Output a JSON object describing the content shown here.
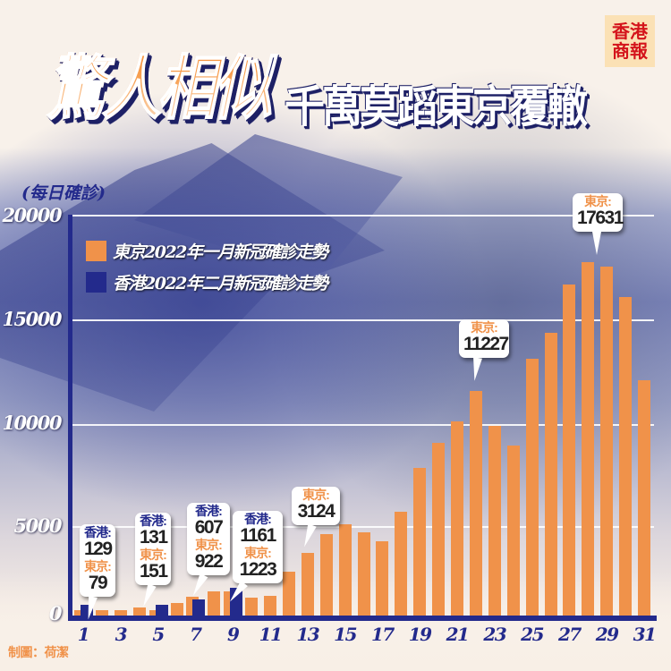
{
  "header": {
    "title_main": "驚人相似",
    "title_sub": "千萬莫蹈東京覆轍",
    "logo_line1": "香港",
    "logo_line2": "商報"
  },
  "footer": {
    "credit": "制圖：荷潔"
  },
  "colors": {
    "tokyo": "#f0924a",
    "hongkong": "#232a8c",
    "axis": "#232a8c",
    "logo_bg": "#fbe1b5",
    "logo_text": "#d4141b"
  },
  "chart_data": {
    "type": "bar",
    "title": "驚人相似 千萬莫蹈東京覆轍",
    "ylabel": "(每日確診)",
    "xlabel": "",
    "ylim": [
      0,
      20000
    ],
    "yticks": [
      "0",
      "5000",
      "10000",
      "15000",
      "20000"
    ],
    "xtick_labels": [
      "1",
      "3",
      "5",
      "7",
      "9",
      "11",
      "13",
      "15",
      "17",
      "19",
      "21",
      "23",
      "25",
      "27",
      "29",
      "31"
    ],
    "grid": true,
    "legend_position": "upper-left",
    "legend": [
      "東京2022年一月新冠確診走勢",
      "香港2022年二月新冠確診走勢"
    ],
    "categories": [
      1,
      2,
      3,
      4,
      5,
      6,
      7,
      8,
      9,
      10,
      11,
      12,
      13,
      14,
      15,
      16,
      17,
      18,
      19,
      20,
      21,
      22,
      23,
      24,
      25,
      26,
      27,
      28,
      29,
      30,
      31
    ],
    "series": [
      {
        "name": "東京2022年一月新冠確診走勢",
        "color": "#f0924a",
        "values": [
          79,
          84,
          103,
          390,
          151,
          641,
          922,
          1224,
          1223,
          871,
          962,
          2198,
          3124,
          4051,
          4561,
          4172,
          3719,
          5185,
          7377,
          8638,
          9699,
          11227,
          9468,
          8503,
          12813,
          14086,
          16538,
          17631,
          17433,
          15895,
          11751
        ]
      },
      {
        "name": "香港2022年二月新冠確診走勢",
        "color": "#232a8c",
        "values": [
          129,
          null,
          null,
          null,
          131,
          null,
          607,
          null,
          1161,
          null,
          null,
          null,
          null,
          null,
          null,
          null,
          null,
          null,
          null,
          null,
          null,
          null,
          null,
          null,
          null,
          null,
          null,
          null,
          null,
          null,
          null
        ]
      }
    ],
    "annotations": [
      {
        "day": 1,
        "hk_label": "香港:",
        "hk_value": "129",
        "tk_label": "東京:",
        "tk_value": "79"
      },
      {
        "day": 5,
        "hk_label": "香港:",
        "hk_value": "131",
        "tk_label": "東京:",
        "tk_value": "151"
      },
      {
        "day": 7,
        "hk_label": "香港:",
        "hk_value": "607",
        "tk_label": "東京:",
        "tk_value": "922"
      },
      {
        "day": 9,
        "hk_label": "香港:",
        "hk_value": "1161",
        "tk_label": "東京:",
        "tk_value": "1223"
      },
      {
        "day": 13,
        "tk_label": "東京:",
        "tk_value": "3124"
      },
      {
        "day": 22,
        "tk_label": "東京:",
        "tk_value": "11227"
      },
      {
        "day": 28,
        "tk_label": "東京:",
        "tk_value": "17631"
      }
    ]
  }
}
